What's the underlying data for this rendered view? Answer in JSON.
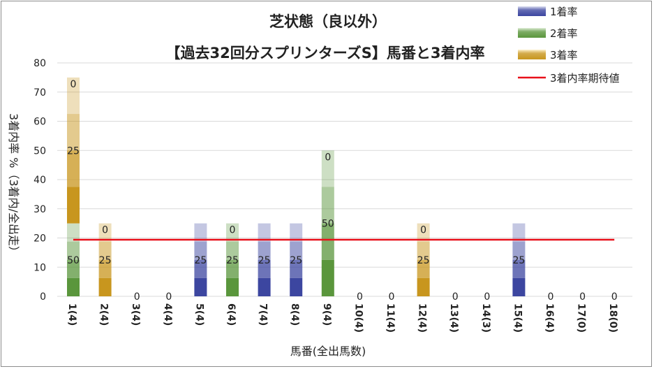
{
  "chart_data": {
    "type": "bar",
    "stacked": true,
    "title": "芝状態（良以外）",
    "subtitle": "【過去32回分スプリンターズS】馬番と3着内率",
    "xlabel": "馬番(全出馬数)",
    "ylabel": "3着内率 %（3着内/全出走）",
    "ylim": [
      0,
      80
    ],
    "yticks": [
      0,
      10,
      20,
      30,
      40,
      50,
      60,
      70,
      80
    ],
    "grid": true,
    "legend_position": "top-right",
    "categories": [
      "1(4)",
      "2(4)",
      "3(4)",
      "4(4)",
      "5(4)",
      "6(4)",
      "7(4)",
      "8(4)",
      "9(4)",
      "10(4)",
      "11(4)",
      "12(4)",
      "13(4)",
      "14(3)",
      "15(4)",
      "16(4)",
      "17(0)",
      "18(0)"
    ],
    "series": [
      {
        "name": "1着率",
        "color": "#3c46a0",
        "values": [
          0,
          0,
          0,
          0,
          25,
          0,
          25,
          25,
          0,
          0,
          0,
          0,
          0,
          0,
          25,
          0,
          0,
          0
        ]
      },
      {
        "name": "2着率",
        "color": "#5a963c",
        "values": [
          25,
          0,
          0,
          0,
          0,
          25,
          0,
          0,
          50,
          0,
          0,
          0,
          0,
          0,
          0,
          0,
          0,
          0
        ]
      },
      {
        "name": "3着率",
        "color": "#c8961e",
        "values": [
          50,
          25,
          0,
          0,
          0,
          0,
          0,
          0,
          0,
          0,
          0,
          25,
          0,
          0,
          0,
          0,
          0,
          0
        ]
      }
    ],
    "segment_labels": [
      [
        "50",
        "25",
        "0"
      ],
      [
        "25",
        "0"
      ],
      [
        "0"
      ],
      [
        "0"
      ],
      [
        "25"
      ],
      [
        "25",
        "0"
      ],
      [
        "25"
      ],
      [
        "25"
      ],
      [
        "50",
        "0"
      ],
      [
        "0"
      ],
      [
        "0"
      ],
      [
        "25",
        "0"
      ],
      [
        "0"
      ],
      [
        "0"
      ],
      [
        "25"
      ],
      [
        "0"
      ],
      [
        "0"
      ],
      [
        "0"
      ]
    ],
    "expected_line": {
      "name": "3着内率期待値",
      "color": "#e8101a",
      "value": 19.4
    }
  }
}
